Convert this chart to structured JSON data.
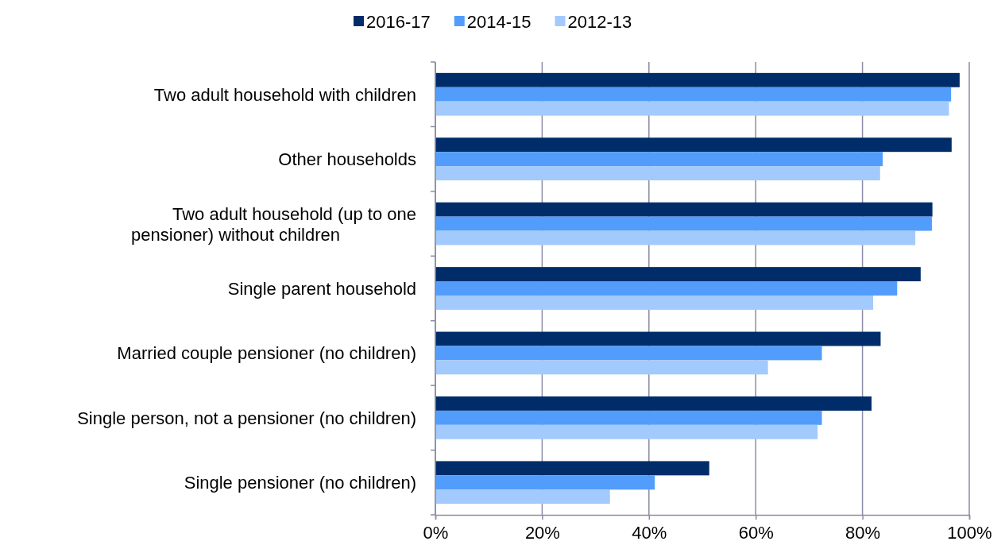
{
  "chart_data": {
    "type": "bar",
    "orientation": "horizontal",
    "categories": [
      "Two adult household with children",
      "Other households",
      "Two adult household (up to one pensioner) without children",
      "Single parent household",
      "Married couple pensioner (no children)",
      "Single person, not a pensioner (no children)",
      "Single pensioner (no children)"
    ],
    "series": [
      {
        "name": "2016-17",
        "color": "#002d6a",
        "values": [
          98.2,
          96.7,
          93.1,
          90.9,
          83.4,
          81.7,
          51.3
        ]
      },
      {
        "name": "2014-15",
        "color": "#529dfc",
        "values": [
          96.6,
          83.8,
          93.0,
          86.5,
          72.4,
          72.4,
          41.1
        ]
      },
      {
        "name": "2012-13",
        "color": "#a3cafd",
        "values": [
          96.2,
          83.3,
          89.9,
          82.0,
          62.3,
          71.6,
          32.7
        ]
      }
    ],
    "xlim": [
      0,
      100
    ],
    "xticks": [
      {
        "value": 0,
        "label": "0%"
      },
      {
        "value": 20,
        "label": "20%"
      },
      {
        "value": 40,
        "label": "40%"
      },
      {
        "value": 60,
        "label": "60%"
      },
      {
        "value": 80,
        "label": "80%"
      },
      {
        "value": 100,
        "label": "100%"
      }
    ],
    "grid": "x",
    "legend": "top"
  }
}
